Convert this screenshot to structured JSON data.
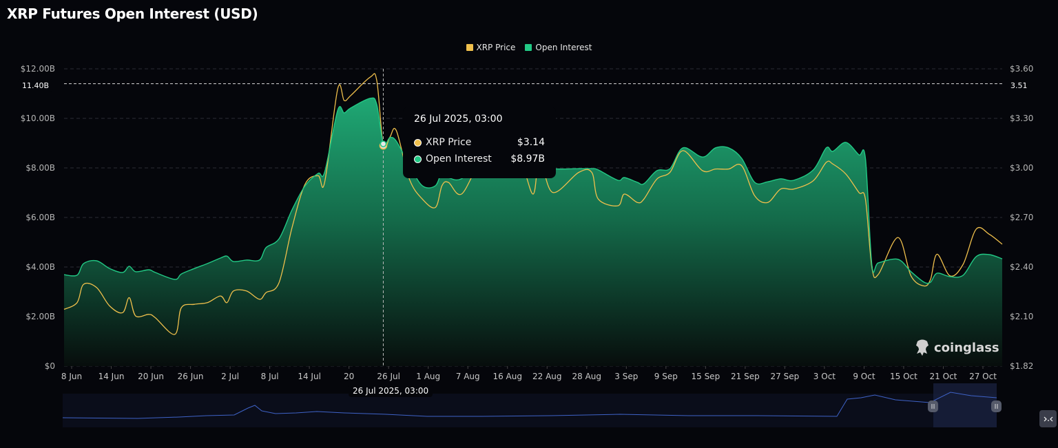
{
  "title": "XRP Futures Open Interest (USD)",
  "legend": [
    {
      "label": "XRP Price",
      "color": "#f0c04c"
    },
    {
      "label": "Open Interest",
      "color": "#22c985"
    }
  ],
  "tooltip": {
    "date": "26 Jul 2025, 03:00",
    "rows": [
      {
        "label": "XRP Price",
        "value": "$3.14"
      },
      {
        "label": "Open Interest",
        "value": "$8.97B"
      }
    ]
  },
  "crosshair": {
    "x_label": "26 Jul 2025, 03:00",
    "left_label": "11.40B",
    "right_label": "3.51",
    "date": "2025-07-26"
  },
  "watermark": "coinglass",
  "navigator_button_icon": "collapse-icon",
  "chart_data": {
    "type": "area",
    "title": "XRP Futures Open Interest (USD)",
    "x_tick_labels": [
      "8 Jun",
      "14 Jun",
      "20 Jun",
      "26 Jun",
      "2 Jul",
      "8 Jul",
      "14 Jul",
      "20",
      "26 Jul",
      "1 Aug",
      "7 Aug",
      "16 Aug",
      "22 Aug",
      "28 Aug",
      "3 Sep",
      "9 Sep",
      "15 Sep",
      "21 Sep",
      "27 Sep",
      "3 Oct",
      "9 Oct",
      "15 Oct",
      "21 Oct",
      "27 Oct"
    ],
    "y_left": {
      "ticks": [
        "$0",
        "$2.00B",
        "$4.00B",
        "$6.00B",
        "$8.00B",
        "$10.00B",
        "$12.00B"
      ],
      "range": [
        0,
        12
      ]
    },
    "y_right": {
      "ticks": [
        "$1.82",
        "$2.10",
        "$2.40",
        "$2.70",
        "$3.00",
        "$3.30",
        "$3.60"
      ],
      "range": [
        1.82,
        3.6
      ]
    },
    "grid": true,
    "legend_position": "top-center",
    "x": [
      "2025-06-07",
      "2025-06-09",
      "2025-06-10",
      "2025-06-12",
      "2025-06-14",
      "2025-06-16",
      "2025-06-17",
      "2025-06-18",
      "2025-06-20",
      "2025-06-21",
      "2025-06-24",
      "2025-06-25",
      "2025-06-27",
      "2025-06-29",
      "2025-07-01",
      "2025-07-02",
      "2025-07-03",
      "2025-07-05",
      "2025-07-07",
      "2025-07-08",
      "2025-07-10",
      "2025-07-12",
      "2025-07-14",
      "2025-07-16",
      "2025-07-17",
      "2025-07-19",
      "2025-07-20",
      "2025-07-21",
      "2025-07-24",
      "2025-07-25",
      "2025-07-26",
      "2025-07-27",
      "2025-07-28",
      "2025-07-30",
      "2025-08-01",
      "2025-08-03",
      "2025-08-04",
      "2025-08-05",
      "2025-08-07",
      "2025-08-10",
      "2025-08-13",
      "2025-08-16",
      "2025-08-18",
      "2025-08-19",
      "2025-08-21",
      "2025-08-25",
      "2025-08-27",
      "2025-08-28",
      "2025-08-31",
      "2025-09-01",
      "2025-09-03",
      "2025-09-04",
      "2025-09-06",
      "2025-09-08",
      "2025-09-10",
      "2025-09-13",
      "2025-09-15",
      "2025-09-17",
      "2025-09-19",
      "2025-09-21",
      "2025-09-23",
      "2025-09-25",
      "2025-09-27",
      "2025-09-30",
      "2025-10-02",
      "2025-10-03",
      "2025-10-05",
      "2025-10-07",
      "2025-10-08",
      "2025-10-09",
      "2025-10-10",
      "2025-10-13",
      "2025-10-15",
      "2025-10-17",
      "2025-10-18",
      "2025-10-19",
      "2025-10-21",
      "2025-10-23",
      "2025-10-25",
      "2025-10-27",
      "2025-10-29"
    ],
    "series": [
      {
        "name": "Open Interest",
        "axis": "left",
        "unit": "USD billions",
        "color": "#22c985",
        "values": [
          3.69,
          3.67,
          4.14,
          4.25,
          3.94,
          3.78,
          4.03,
          3.81,
          3.89,
          3.78,
          3.5,
          3.72,
          3.94,
          4.14,
          4.36,
          4.44,
          4.22,
          4.28,
          4.28,
          4.78,
          5.14,
          6.31,
          7.28,
          7.78,
          7.83,
          10.33,
          10.22,
          10.42,
          10.81,
          10.56,
          8.97,
          9.22,
          9.08,
          8.11,
          7.28,
          7.28,
          7.83,
          7.61,
          7.56,
          8.25,
          8.11,
          8.25,
          8.25,
          8.19,
          7.97,
          7.97,
          7.97,
          7.92,
          7.5,
          7.61,
          7.42,
          7.36,
          7.89,
          7.97,
          8.81,
          8.44,
          8.81,
          8.81,
          8.39,
          7.42,
          7.44,
          7.56,
          7.5,
          7.92,
          8.81,
          8.67,
          9.03,
          8.53,
          8.39,
          4.08,
          4.17,
          4.31,
          3.81,
          3.39,
          3.39,
          3.75,
          3.61,
          3.67,
          4.42,
          4.5,
          4.33
        ]
      },
      {
        "name": "XRP Price",
        "axis": "right",
        "unit": "USD",
        "color": "#f0c04c",
        "values": [
          2.16,
          2.2,
          2.31,
          2.29,
          2.18,
          2.14,
          2.23,
          2.12,
          2.13,
          2.11,
          2.01,
          2.17,
          2.19,
          2.2,
          2.24,
          2.2,
          2.27,
          2.27,
          2.22,
          2.26,
          2.32,
          2.65,
          2.91,
          2.96,
          2.92,
          3.48,
          3.41,
          3.44,
          3.55,
          3.53,
          3.14,
          3.19,
          3.23,
          2.94,
          2.82,
          2.77,
          2.9,
          2.92,
          2.85,
          3.04,
          3.02,
          3.04,
          2.85,
          3.06,
          2.86,
          2.98,
          2.98,
          2.82,
          2.78,
          2.85,
          2.8,
          2.82,
          2.94,
          2.98,
          3.11,
          2.99,
          3.0,
          3.0,
          3.02,
          2.84,
          2.8,
          2.88,
          2.88,
          2.93,
          3.04,
          3.03,
          2.97,
          2.86,
          2.82,
          2.41,
          2.37,
          2.59,
          2.36,
          2.3,
          2.34,
          2.49,
          2.36,
          2.43,
          2.64,
          2.61,
          2.55
        ]
      }
    ]
  }
}
